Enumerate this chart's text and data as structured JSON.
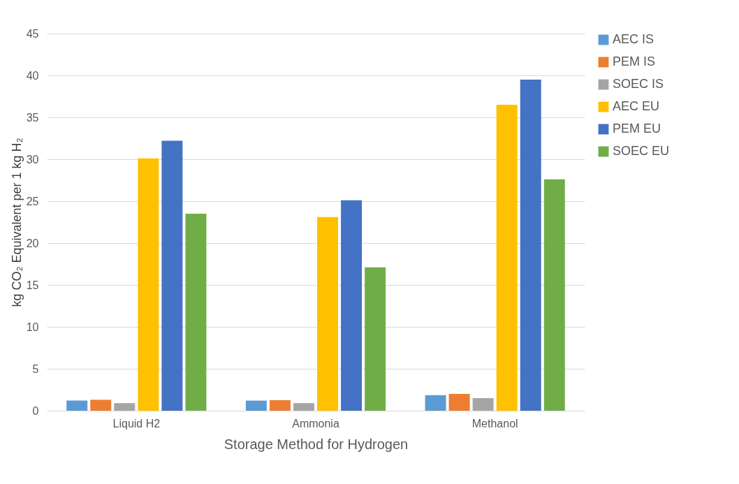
{
  "chart_data": {
    "type": "bar",
    "xlabel": "Storage Method for Hydrogen",
    "ylabel": "kg CO₂ Equivalent per 1 kg H₂",
    "categories": [
      "Liquid H2",
      "Ammonia",
      "Methanol"
    ],
    "series": [
      {
        "name": "AEC IS",
        "color": "#5b9bd5",
        "values": [
          1.2,
          1.2,
          1.85
        ]
      },
      {
        "name": "PEM IS",
        "color": "#ed7d31",
        "values": [
          1.3,
          1.25,
          2.0
        ]
      },
      {
        "name": "SOEC IS",
        "color": "#a5a5a5",
        "values": [
          0.9,
          0.9,
          1.5
        ]
      },
      {
        "name": "AEC EU",
        "color": "#ffc000",
        "values": [
          30.1,
          23.1,
          36.5
        ]
      },
      {
        "name": "PEM EU",
        "color": "#4472c4",
        "values": [
          32.2,
          25.1,
          39.5
        ]
      },
      {
        "name": "SOEC EU",
        "color": "#70ad47",
        "values": [
          23.5,
          17.1,
          27.6
        ]
      }
    ],
    "ylim": [
      0,
      45
    ],
    "yticks": [
      0,
      5,
      10,
      15,
      20,
      25,
      30,
      35,
      40,
      45
    ],
    "grid": "y",
    "legend": "right"
  }
}
